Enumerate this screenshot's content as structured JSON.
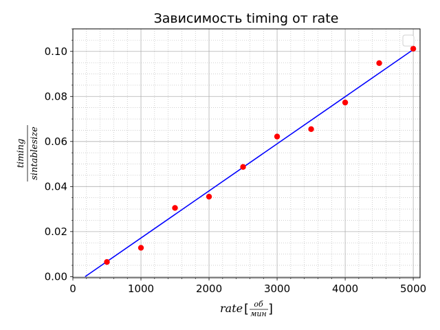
{
  "chart_data": {
    "type": "scatter",
    "title": "Зависимость timing от rate",
    "xlabel": {
      "main": "rate",
      "unit_num": "об",
      "unit_den": "мин"
    },
    "ylabel": {
      "num": "timing",
      "den": "sintablesize"
    },
    "xlim": [
      0,
      5100
    ],
    "ylim": [
      -0.0005,
      0.11
    ],
    "x_ticks": [
      "0",
      "1000",
      "2000",
      "3000",
      "4000",
      "5000"
    ],
    "x_tick_values": [
      0,
      1000,
      2000,
      3000,
      4000,
      5000
    ],
    "y_ticks": [
      "0.00",
      "0.02",
      "0.04",
      "0.06",
      "0.08",
      "0.10"
    ],
    "y_tick_values": [
      0.0,
      0.02,
      0.04,
      0.06,
      0.08,
      0.1
    ],
    "grid": true,
    "minor_grid": true,
    "legend": "top-right (empty)",
    "series": [
      {
        "kind": "scatter",
        "color": "#ff0000",
        "x": [
          500,
          1000,
          1500,
          2000,
          2500,
          3000,
          3500,
          4000,
          4500,
          5000
        ],
        "y": [
          0.0065,
          0.0128,
          0.0305,
          0.0355,
          0.0487,
          0.0622,
          0.0655,
          0.0773,
          0.0948,
          0.1012
        ]
      },
      {
        "kind": "line",
        "color": "#0000ff",
        "x": [
          180,
          5000
        ],
        "y": [
          0.0,
          0.1008
        ]
      }
    ]
  }
}
